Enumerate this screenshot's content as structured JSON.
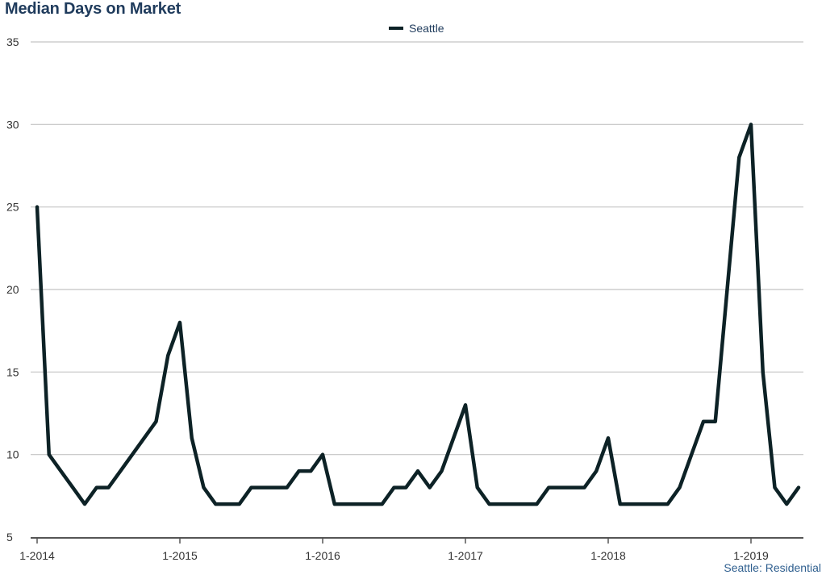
{
  "chart_data": {
    "type": "line",
    "title": "Median Days on Market",
    "footer": "Seattle: Residential",
    "legend": "top-center",
    "grid": true,
    "ylim": [
      5,
      35
    ],
    "y_ticks": [
      5,
      10,
      15,
      20,
      25,
      30,
      35
    ],
    "x_ticks": [
      "1-2014",
      "1-2015",
      "1-2016",
      "1-2017",
      "1-2018",
      "1-2019"
    ],
    "x_range": [
      "1-2014",
      "5-2019"
    ],
    "x": [
      "1-2014",
      "2-2014",
      "3-2014",
      "4-2014",
      "5-2014",
      "6-2014",
      "7-2014",
      "8-2014",
      "9-2014",
      "10-2014",
      "11-2014",
      "12-2014",
      "1-2015",
      "2-2015",
      "3-2015",
      "4-2015",
      "5-2015",
      "6-2015",
      "7-2015",
      "8-2015",
      "9-2015",
      "10-2015",
      "11-2015",
      "12-2015",
      "1-2016",
      "2-2016",
      "3-2016",
      "4-2016",
      "5-2016",
      "6-2016",
      "7-2016",
      "8-2016",
      "9-2016",
      "10-2016",
      "11-2016",
      "12-2016",
      "1-2017",
      "2-2017",
      "3-2017",
      "4-2017",
      "5-2017",
      "6-2017",
      "7-2017",
      "8-2017",
      "9-2017",
      "10-2017",
      "11-2017",
      "12-2017",
      "1-2018",
      "2-2018",
      "3-2018",
      "4-2018",
      "5-2018",
      "6-2018",
      "7-2018",
      "8-2018",
      "9-2018",
      "10-2018",
      "11-2018",
      "12-2018",
      "1-2019",
      "2-2019",
      "3-2019",
      "4-2019",
      "5-2019"
    ],
    "series": [
      {
        "name": "Seattle",
        "color": "#0d2226",
        "values": [
          25,
          10,
          9,
          8,
          7,
          8,
          8,
          9,
          10,
          11,
          12,
          16,
          18,
          11,
          8,
          7,
          7,
          7,
          8,
          8,
          8,
          8,
          9,
          9,
          10,
          7,
          7,
          7,
          7,
          7,
          8,
          8,
          9,
          8,
          9,
          11,
          13,
          8,
          7,
          7,
          7,
          7,
          7,
          8,
          8,
          8,
          8,
          9,
          11,
          7,
          7,
          7,
          7,
          7,
          8,
          10,
          12,
          12,
          20,
          28,
          30,
          15,
          8,
          7,
          8
        ]
      }
    ]
  }
}
